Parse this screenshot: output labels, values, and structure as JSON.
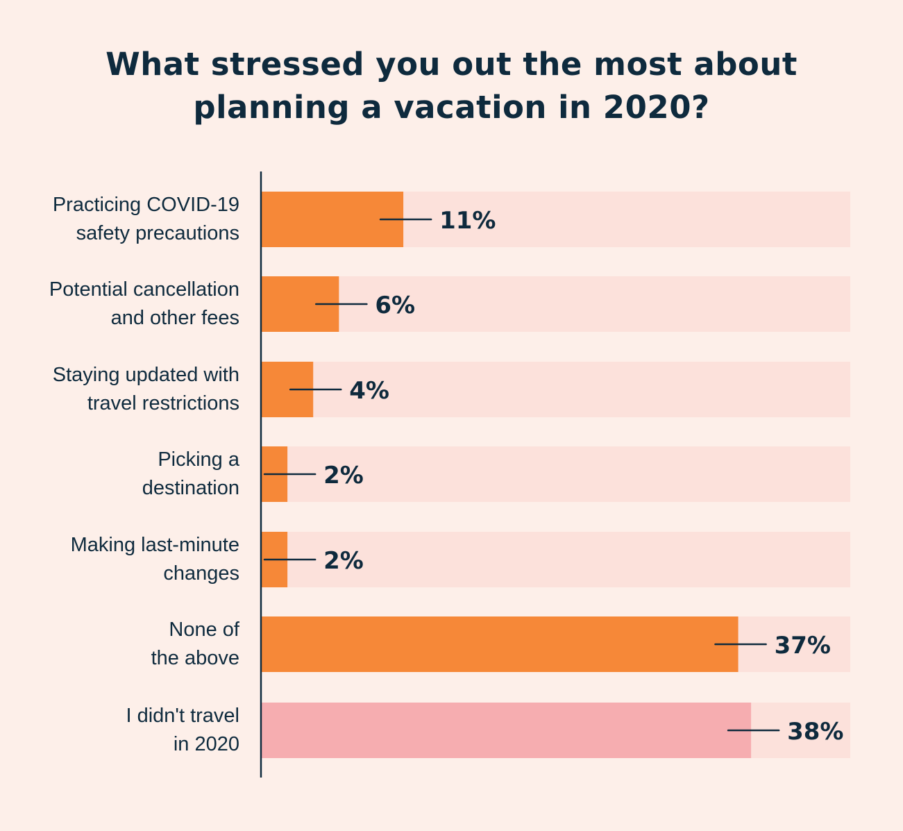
{
  "chart_data": {
    "type": "bar",
    "orientation": "horizontal",
    "title": "What stressed you out the most about planning a vacation in 2020?",
    "title_lines": [
      "What stressed you out the most about",
      "planning a vacation in 2020?"
    ],
    "categories": [
      "Practicing COVID-19 safety precautions",
      "Potential cancellation and other fees",
      "Staying updated with travel restrictions",
      "Picking a destination",
      "Making last-minute changes",
      "None of the above",
      "I didn't travel in 2020"
    ],
    "category_lines": [
      [
        "Practicing COVID-19",
        "safety precautions"
      ],
      [
        "Potential cancellation",
        "and other fees"
      ],
      [
        "Staying updated with",
        "travel restrictions"
      ],
      [
        "Picking a",
        "destination"
      ],
      [
        "Making last-minute",
        "changes"
      ],
      [
        "None of",
        "the above"
      ],
      [
        "I didn't travel",
        "in 2020"
      ]
    ],
    "values": [
      11,
      6,
      4,
      2,
      2,
      37,
      38
    ],
    "value_labels": [
      "11%",
      "6%",
      "4%",
      "2%",
      "2%",
      "37%",
      "38%"
    ],
    "unit": "%",
    "xlabel": "",
    "ylabel": "",
    "xlim": [
      0,
      45.7
    ],
    "grid": false,
    "legend": "none",
    "colors": {
      "background": "#fdefe9",
      "bar": "#f68838",
      "bar_highlight": "#f6adb0",
      "track": "#fce1db",
      "text": "#0e2a3d",
      "axis": "#0e2a3d"
    },
    "bar_color_keys": [
      "bar",
      "bar",
      "bar",
      "bar",
      "bar",
      "bar",
      "bar_highlight"
    ]
  }
}
